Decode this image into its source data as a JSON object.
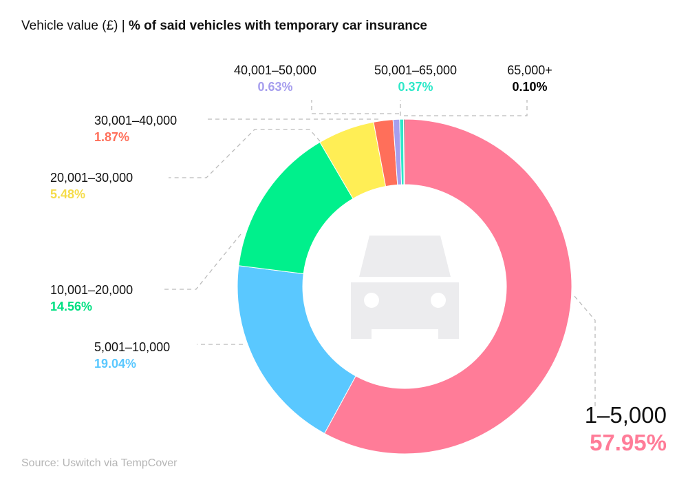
{
  "title": {
    "prefix": "Vehicle value (£) | ",
    "bold": "% of said vehicles with temporary car insurance"
  },
  "source": "Source: Uswitch via TempCover",
  "chart_data": {
    "type": "pie",
    "donut": true,
    "title": "Vehicle value (£) | % of said vehicles with temporary car insurance",
    "center_icon": "car-icon",
    "categories": [
      "1–5,000",
      "5,001–10,000",
      "10,001–20,000",
      "20,001–30,000",
      "30,001–40,000",
      "40,001–50,000",
      "50,001–65,000",
      "65,000+"
    ],
    "values": [
      57.95,
      19.04,
      14.56,
      5.48,
      1.87,
      0.63,
      0.37,
      0.1
    ],
    "value_labels": [
      "57.95%",
      "19.04%",
      "14.56%",
      "5.48%",
      "1.87%",
      "0.63%",
      "0.37%",
      "0.10%"
    ],
    "colors": [
      "#FF7C98",
      "#5AC8FF",
      "#00F08C",
      "#FFEE55",
      "#FF6F5A",
      "#A69EEE",
      "#2DE8C8",
      "#000000"
    ],
    "legend": "none (leader-line labels)"
  }
}
